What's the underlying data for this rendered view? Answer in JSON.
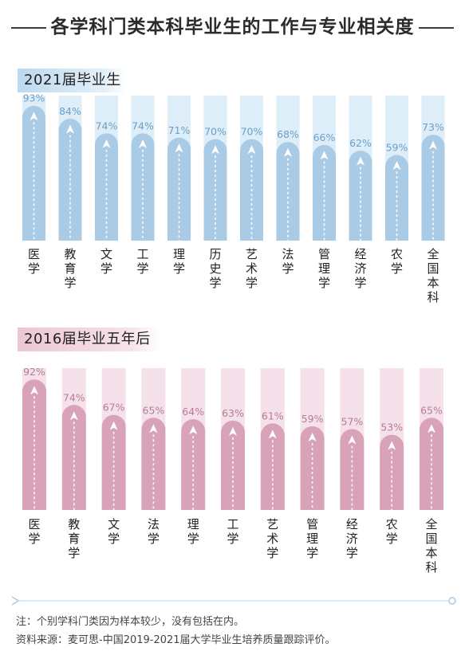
{
  "title": "各学科门类本科毕业生的工作与专业相关度",
  "chart_data": [
    {
      "type": "bar",
      "title": "2021届毕业生",
      "categories": [
        "医学",
        "教育学",
        "文学",
        "工学",
        "理学",
        "历史学",
        "艺术学",
        "法学",
        "管理学",
        "经济学",
        "农学",
        "全国本科"
      ],
      "values": [
        93,
        84,
        74,
        74,
        71,
        70,
        70,
        68,
        66,
        62,
        59,
        73
      ],
      "value_suffix": "%",
      "ylim": [
        0,
        100
      ],
      "colors": {
        "bar": "#a9cbe6",
        "track": "#deeef8",
        "label": "#6a9fc9"
      }
    },
    {
      "type": "bar",
      "title": "2016届毕业五年后",
      "categories": [
        "医学",
        "教育学",
        "文学",
        "法学",
        "理学",
        "工学",
        "艺术学",
        "管理学",
        "经济学",
        "农学",
        "全国本科"
      ],
      "values": [
        92,
        74,
        67,
        65,
        64,
        63,
        61,
        59,
        57,
        53,
        65
      ],
      "value_suffix": "%",
      "ylim": [
        0,
        100
      ],
      "colors": {
        "bar": "#d8a3b8",
        "track": "#f4e1e9",
        "label": "#b87b96"
      }
    }
  ],
  "notes": {
    "note": "注：个别学科门类因为样本较少，没有包括在内。",
    "source": "资料来源：麦可思-中国2019-2021届大学毕业生培养质量跟踪评价。"
  }
}
